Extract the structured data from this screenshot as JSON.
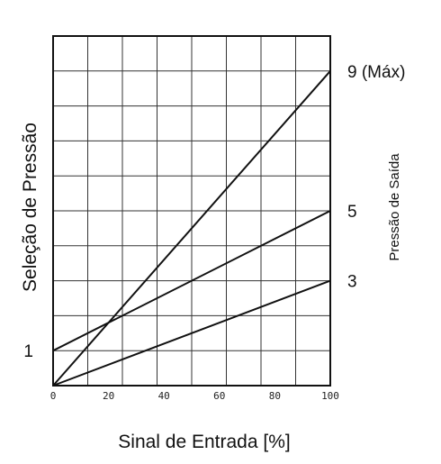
{
  "chart_data": {
    "type": "line",
    "xlabel": "Sinal de Entrada [%]",
    "ylabel": "Seleção de Pressão",
    "y2label": "Pressão de Saída",
    "xlim": [
      0,
      100
    ],
    "ylim": [
      0,
      10
    ],
    "x_ticks": [
      "0",
      "20",
      "40",
      "60",
      "80",
      "100"
    ],
    "left_labels": [
      {
        "y": 1,
        "text": "1"
      }
    ],
    "grid": true,
    "series": [
      {
        "x": [
          0,
          100
        ],
        "y": [
          0,
          9
        ],
        "end_label": "9 (Máx)"
      },
      {
        "x": [
          0,
          100
        ],
        "y": [
          1,
          5
        ],
        "end_label": "5"
      },
      {
        "x": [
          0,
          100
        ],
        "y": [
          0,
          3
        ],
        "end_label": "3"
      }
    ]
  }
}
